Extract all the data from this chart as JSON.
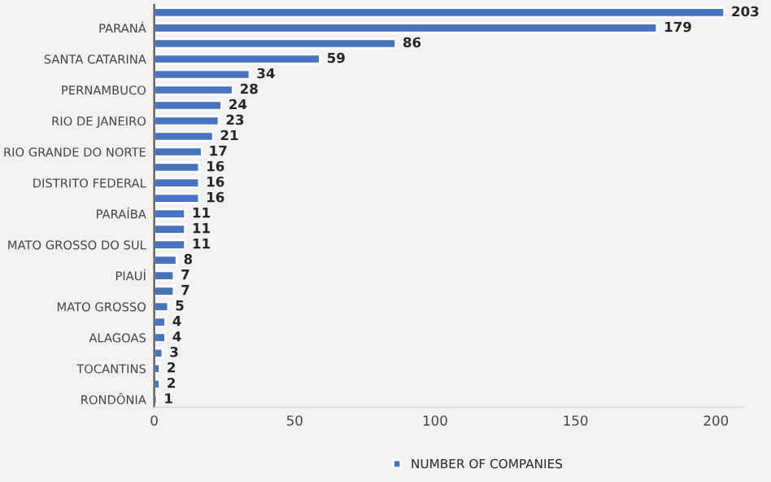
{
  "chart_data": {
    "type": "bar",
    "orientation": "horizontal",
    "data_labels": true,
    "legend": "bottom",
    "grid": false,
    "categories": [
      null,
      "PARANÁ",
      null,
      "SANTA CATARINA",
      null,
      "PERNAMBUCO",
      null,
      "RIO DE JANEIRO",
      null,
      "RIO GRANDE DO NORTE",
      null,
      "DISTRITO FEDERAL",
      null,
      "PARAÍBA",
      null,
      "MATO GROSSO DO SUL",
      null,
      "PIAUÍ",
      null,
      "MATO GROSSO",
      null,
      "ALAGOAS",
      null,
      "TOCANTINS",
      null,
      "RONDÔNIA"
    ],
    "series": [
      {
        "name": "NUMBER OF COMPANIES",
        "color": "#4472c4",
        "values": [
          203,
          179,
          86,
          59,
          34,
          28,
          24,
          23,
          21,
          17,
          16,
          16,
          16,
          11,
          11,
          11,
          8,
          7,
          7,
          5,
          4,
          4,
          3,
          2,
          2,
          1
        ]
      }
    ],
    "xlim": [
      0,
      210
    ],
    "xticks": [
      0,
      50,
      100,
      150,
      200
    ]
  }
}
